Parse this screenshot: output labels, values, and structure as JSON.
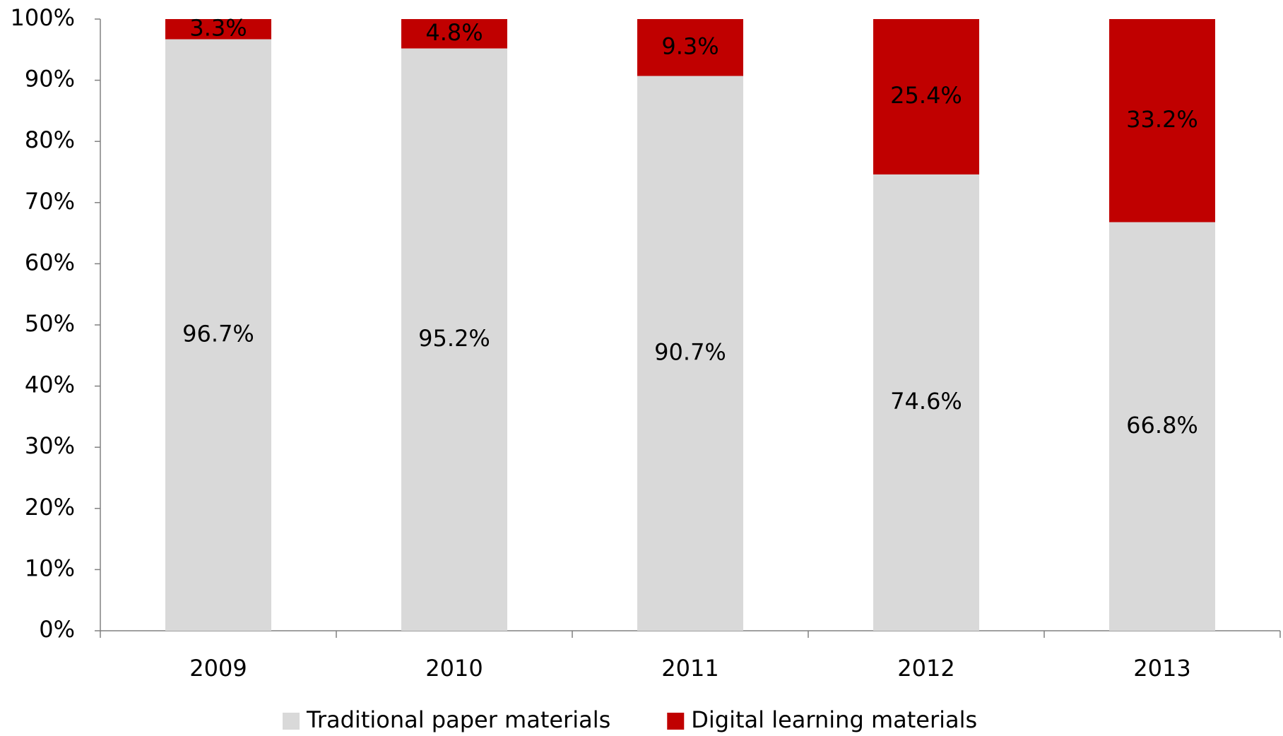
{
  "chart_data": {
    "type": "bar",
    "stacked": true,
    "categories": [
      "2009",
      "2010",
      "2011",
      "2012",
      "2013"
    ],
    "series": [
      {
        "name": "Traditional paper materials",
        "color": "#d9d9d9",
        "values": [
          96.7,
          95.2,
          90.7,
          74.6,
          66.8
        ],
        "value_labels": [
          "96.7%",
          "95.2%",
          "90.7%",
          "74.6%",
          "66.8%"
        ]
      },
      {
        "name": "Digital learning materials",
        "color": "#c00000",
        "values": [
          3.3,
          4.8,
          9.3,
          25.4,
          33.2
        ],
        "value_labels": [
          "3.3%",
          "4.8%",
          "9.3%",
          "25.4%",
          "33.2%"
        ]
      }
    ],
    "ylim": [
      0,
      100
    ],
    "yticks": [
      {
        "value": 0,
        "label": "0%"
      },
      {
        "value": 10,
        "label": "10%"
      },
      {
        "value": 20,
        "label": "20%"
      },
      {
        "value": 30,
        "label": "30%"
      },
      {
        "value": 40,
        "label": "40%"
      },
      {
        "value": 50,
        "label": "50%"
      },
      {
        "value": 60,
        "label": "60%"
      },
      {
        "value": 70,
        "label": "70%"
      },
      {
        "value": 80,
        "label": "80%"
      },
      {
        "value": 90,
        "label": "90%"
      },
      {
        "value": 100,
        "label": "100%"
      }
    ],
    "grid": false,
    "legend": "bottom"
  }
}
